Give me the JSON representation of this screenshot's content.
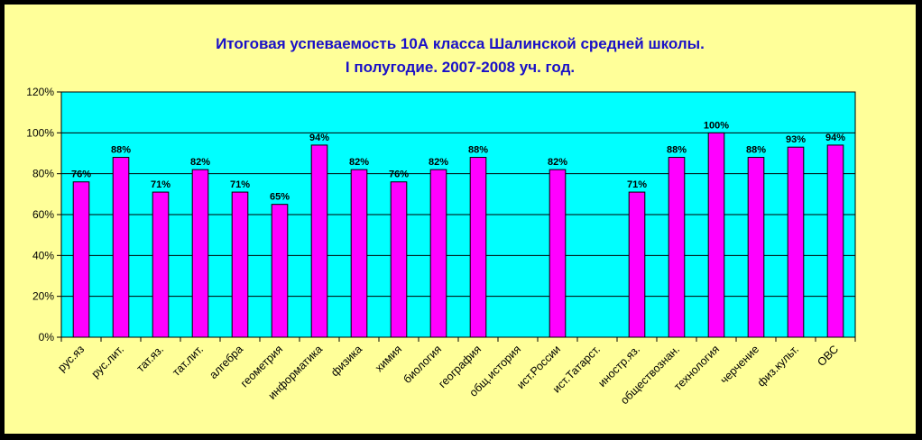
{
  "chart_data": {
    "type": "bar",
    "title_lines": [
      "Итоговая успеваемость 10А класса Шалинской средней школы.",
      "I полугодие. 2007-2008 уч. год."
    ],
    "categories": [
      "рус.яз",
      "рус.лит.",
      "тат.яз.",
      "тат.лит.",
      "алгебра",
      "геометрия",
      "информатика",
      "физика",
      "химия",
      "биология",
      "география",
      "общ.история",
      "ист.России",
      "ист.Татарст.",
      "иностр.яз.",
      "обществознан.",
      "технология",
      "черчение",
      "физ.культ.",
      "ОВС"
    ],
    "values": [
      76,
      88,
      71,
      82,
      71,
      65,
      94,
      82,
      76,
      82,
      88,
      null,
      82,
      null,
      71,
      88,
      100,
      88,
      93,
      94
    ],
    "data_labels": [
      "76%",
      "88%",
      "71%",
      "82%",
      "71%",
      "65%",
      "94%",
      "82%",
      "76%",
      "82%",
      "88%",
      "",
      "82%",
      "",
      "71%",
      "88%",
      "100%",
      "88%",
      "93%",
      "94%"
    ],
    "y_ticks": [
      "0%",
      "20%",
      "40%",
      "60%",
      "80%",
      "100%",
      "120%"
    ],
    "ylim": [
      0,
      120
    ],
    "grid": true,
    "colors": {
      "background": "#FFFF99",
      "plot_area": "#00FFFF",
      "bar_fill": "#FF00FF",
      "bar_stroke": "#000000",
      "title": "#1a10c8",
      "border": "#000000"
    }
  }
}
